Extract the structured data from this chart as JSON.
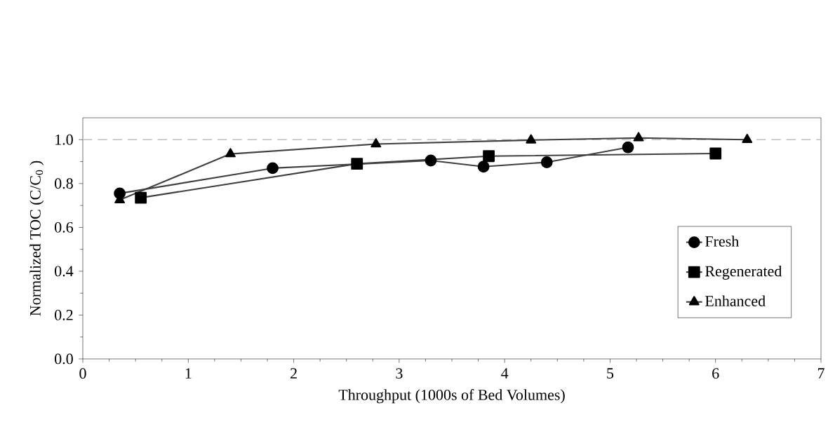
{
  "chart_data": {
    "type": "line",
    "xlabel": "Throughput (1000s of Bed Volumes)",
    "ylabel": "Normalized TOC (C/C$_{0}$ )",
    "xlim": [
      0,
      7
    ],
    "ylim": [
      0,
      1.1
    ],
    "xticks": [
      0,
      1,
      2,
      3,
      4,
      5,
      6,
      7
    ],
    "yticks": [
      {
        "value": 0,
        "label": "0.0"
      },
      {
        "value": 0.2,
        "label": "0.2"
      },
      {
        "value": 0.4,
        "label": "0.4"
      },
      {
        "value": 0.6,
        "label": "0.6"
      },
      {
        "value": 0.8,
        "label": "0.8"
      },
      {
        "value": 1.0,
        "label": "1.0"
      }
    ],
    "legend": "right",
    "grid": false,
    "line_style": "solid",
    "ref_lines": [
      {
        "axis": "y",
        "value": 1.0,
        "color": "#bfbfbf",
        "line_style": "dashed"
      }
    ],
    "series": [
      {
        "name": "Fresh",
        "color": "#404040",
        "marker": "circle",
        "x": [
          0.35,
          1.8,
          3.3,
          3.8,
          4.4,
          5.17
        ],
        "values": [
          0.755,
          0.87,
          0.905,
          0.877,
          0.897,
          0.965
        ]
      },
      {
        "name": "Regenerated",
        "color": "#404040",
        "marker": "square",
        "x": [
          0.55,
          2.6,
          3.85,
          6.0
        ],
        "values": [
          0.735,
          0.89,
          0.925,
          0.937
        ]
      },
      {
        "name": "Enhanced",
        "color": "#404040",
        "marker": "triangle",
        "x": [
          0.35,
          1.4,
          2.78,
          4.25,
          5.27,
          6.3
        ],
        "values": [
          0.725,
          0.935,
          0.98,
          0.998,
          1.008,
          1.0
        ]
      }
    ]
  }
}
